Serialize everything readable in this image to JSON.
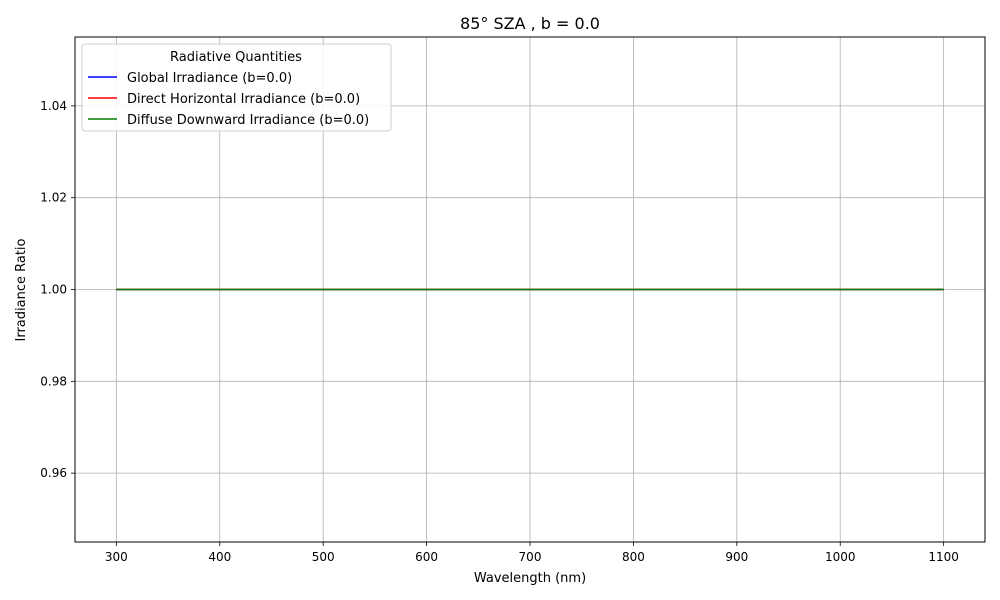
{
  "chart_data": {
    "type": "line",
    "title": "85° SZA , b = 0.0",
    "xlabel": "Wavelength (nm)",
    "ylabel": "Irradiance Ratio",
    "xlim": [
      260,
      1140
    ],
    "ylim": [
      0.945,
      1.055
    ],
    "xticks": [
      300,
      400,
      500,
      600,
      700,
      800,
      900,
      1000,
      1100
    ],
    "xtick_labels": [
      "300",
      "400",
      "500",
      "600",
      "700",
      "800",
      "900",
      "1000",
      "1100"
    ],
    "yticks": [
      0.96,
      0.98,
      1.0,
      1.02,
      1.04
    ],
    "ytick_labels": [
      "0.96",
      "0.98",
      "1.00",
      "1.02",
      "1.04"
    ],
    "grid": true,
    "legend": {
      "title": "Radiative Quantities",
      "placement": "upper-left"
    },
    "series": [
      {
        "name": "Global Irradiance (b=0.0)",
        "color": "#0000ff",
        "x": [
          300,
          1100
        ],
        "y": [
          1.0,
          1.0
        ]
      },
      {
        "name": "Direct Horizontal Irradiance (b=0.0)",
        "color": "#ff0000",
        "x": [
          300,
          1100
        ],
        "y": [
          1.0,
          1.0
        ]
      },
      {
        "name": "Diffuse Downward Irradiance (b=0.0)",
        "color": "#008000",
        "x": [
          300,
          1100
        ],
        "y": [
          1.0,
          1.0
        ]
      }
    ]
  }
}
